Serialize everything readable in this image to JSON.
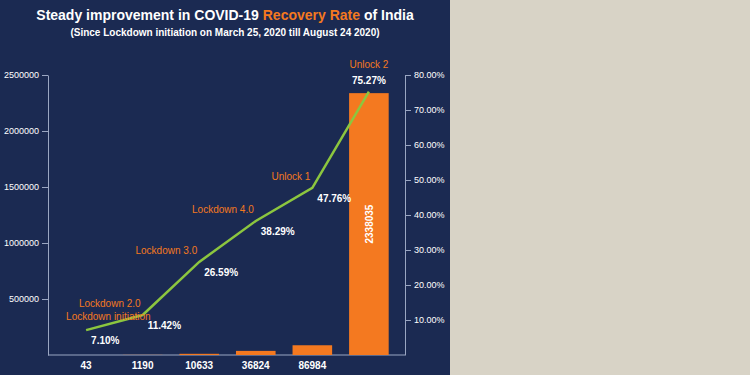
{
  "chart_data": {
    "type": "bar",
    "title": "Steady improvement in COVID-19 Recovery Rate of India",
    "subtitle": "(Since Lockdown initiation on March 25, 2020 till August 24 2020)",
    "categories": [
      "Lockdown initiation",
      "Lockdown 2.0",
      "Lockdown 3.0",
      "Lockdown 4.0",
      "Unlock 1",
      "Unlock 2"
    ],
    "series": [
      {
        "type": "bar",
        "color": "#f47920",
        "values": [
          43,
          1190,
          10633,
          36824,
          86984,
          2338035
        ]
      },
      {
        "type": "line",
        "axis": "y2",
        "color": "#8cc63f",
        "values": [
          7.1,
          11.42,
          26.59,
          38.29,
          47.76,
          75.27
        ],
        "value_labels": [
          "7.10%",
          "11.42%",
          "26.59%",
          "38.29%",
          "47.76%",
          "75.27%"
        ]
      }
    ],
    "ylim": [
      0,
      2500000
    ],
    "yticks": [
      500000,
      1000000,
      1500000,
      2000000,
      2500000
    ],
    "y2lim": [
      0,
      80
    ],
    "y2ticks": [
      {
        "value": 10,
        "label": "10.00%"
      },
      {
        "value": 20,
        "label": "20.00%"
      },
      {
        "value": 30,
        "label": "30.00%"
      },
      {
        "value": 40,
        "label": "40.00%"
      },
      {
        "value": 50,
        "label": "50.00%"
      },
      {
        "value": 60,
        "label": "60.00%"
      },
      {
        "value": 70,
        "label": "70.00%"
      },
      {
        "value": 80,
        "label": "80.00%"
      }
    ],
    "data_labels": true
  }
}
